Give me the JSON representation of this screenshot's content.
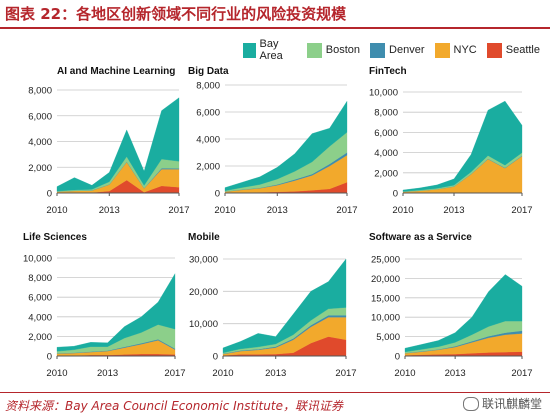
{
  "header": {
    "title": "图表 22：各地区创新领域不同行业的风险投资规模"
  },
  "footer": {
    "source": "资料来源：Bay Area Council Economic Institute，联讯证券",
    "watermark": "联讯麒麟堂"
  },
  "legend": {
    "items": [
      {
        "name": "Bay Area",
        "color": "#1aada0"
      },
      {
        "name": "Boston",
        "color": "#8ccf8a"
      },
      {
        "name": "Denver",
        "color": "#3f8dae"
      },
      {
        "name": "NYC",
        "color": "#f2a92c"
      },
      {
        "name": "Seattle",
        "color": "#e04a2c"
      }
    ]
  },
  "chart_data": [
    {
      "type": "area",
      "stacked": true,
      "title": "AI and Machine Learning",
      "x": [
        2010,
        2011,
        2012,
        2013,
        2014,
        2015,
        2016,
        2017
      ],
      "xticks": [
        "2010",
        "2013",
        "2017"
      ],
      "yticks": [
        "0",
        "2,000",
        "4,000",
        "6,000",
        "8,000"
      ],
      "ylim": [
        0,
        8000
      ],
      "series": [
        {
          "name": "Seattle",
          "values": [
            20,
            30,
            40,
            150,
            1000,
            60,
            550,
            450
          ]
        },
        {
          "name": "NYC",
          "values": [
            80,
            130,
            150,
            500,
            1400,
            300,
            1300,
            1400
          ]
        },
        {
          "name": "Denver",
          "values": [
            5,
            10,
            10,
            20,
            30,
            20,
            80,
            60
          ]
        },
        {
          "name": "Boston",
          "values": [
            40,
            60,
            80,
            200,
            400,
            200,
            700,
            550
          ]
        },
        {
          "name": "Bay Area",
          "values": [
            355,
            970,
            320,
            730,
            2070,
            1120,
            3770,
            4940
          ]
        }
      ]
    },
    {
      "type": "area",
      "stacked": true,
      "title": "Big Data",
      "x": [
        2010,
        2011,
        2012,
        2013,
        2014,
        2015,
        2016,
        2017
      ],
      "xticks": [
        "2010",
        "2013",
        "2017"
      ],
      "yticks": [
        "0",
        "2,000",
        "4,000",
        "6,000",
        "8,000"
      ],
      "ylim": [
        0,
        8000
      ],
      "series": [
        {
          "name": "Seattle",
          "values": [
            20,
            40,
            50,
            80,
            120,
            200,
            300,
            800
          ]
        },
        {
          "name": "NYC",
          "values": [
            80,
            200,
            300,
            500,
            800,
            1100,
            1700,
            2000
          ]
        },
        {
          "name": "Denver",
          "values": [
            10,
            20,
            30,
            50,
            80,
            100,
            150,
            200
          ]
        },
        {
          "name": "Boston",
          "values": [
            50,
            150,
            250,
            400,
            600,
            900,
            1300,
            1500
          ]
        },
        {
          "name": "Bay Area",
          "values": [
            240,
            390,
            570,
            870,
            1300,
            2100,
            1350,
            2300
          ]
        }
      ]
    },
    {
      "type": "area",
      "stacked": true,
      "title": "FinTech",
      "x": [
        2010,
        2011,
        2012,
        2013,
        2014,
        2015,
        2016,
        2017
      ],
      "xticks": [
        "2010",
        "2013",
        "2017"
      ],
      "yticks": [
        "0",
        "2,000",
        "4,000",
        "6,000",
        "8,000",
        "10,000"
      ],
      "ylim": [
        0,
        10000
      ],
      "series": [
        {
          "name": "Seattle",
          "values": [
            10,
            20,
            20,
            30,
            50,
            60,
            60,
            50
          ]
        },
        {
          "name": "NYC",
          "values": [
            100,
            200,
            350,
            600,
            1800,
            3300,
            2400,
            3600
          ]
        },
        {
          "name": "Denver",
          "values": [
            5,
            10,
            10,
            20,
            30,
            40,
            40,
            40
          ]
        },
        {
          "name": "Boston",
          "values": [
            40,
            60,
            80,
            120,
            200,
            300,
            250,
            300
          ]
        },
        {
          "name": "Bay Area",
          "values": [
            145,
            210,
            340,
            630,
            1720,
            4500,
            6350,
            2710
          ]
        }
      ]
    },
    {
      "type": "area",
      "stacked": true,
      "title": "Life Sciences",
      "x": [
        2010,
        2011,
        2012,
        2013,
        2014,
        2015,
        2016,
        2017
      ],
      "xticks": [
        "2010",
        "2013",
        "2017"
      ],
      "yticks": [
        "0",
        "2,000",
        "4,000",
        "6,000",
        "8,000",
        "10,000"
      ],
      "ylim": [
        0,
        10000
      ],
      "series": [
        {
          "name": "Seattle",
          "values": [
            50,
            50,
            100,
            100,
            150,
            200,
            200,
            150
          ]
        },
        {
          "name": "NYC",
          "values": [
            200,
            250,
            300,
            400,
            700,
            1000,
            1400,
            500
          ]
        },
        {
          "name": "Denver",
          "values": [
            30,
            30,
            50,
            50,
            80,
            100,
            100,
            100
          ]
        },
        {
          "name": "Boston",
          "values": [
            200,
            300,
            500,
            400,
            900,
            1100,
            1500,
            2000
          ]
        },
        {
          "name": "Bay Area",
          "values": [
            420,
            370,
            450,
            400,
            1170,
            1600,
            2300,
            5650
          ]
        }
      ]
    },
    {
      "type": "area",
      "stacked": true,
      "title": "Mobile",
      "x": [
        2010,
        2011,
        2012,
        2013,
        2014,
        2015,
        2016,
        2017
      ],
      "xticks": [
        "2010",
        "2013",
        "2017"
      ],
      "yticks": [
        "0",
        "10,000",
        "20,000",
        "30,000"
      ],
      "ylim": [
        0,
        30000
      ],
      "series": [
        {
          "name": "Seattle",
          "values": [
            200,
            500,
            500,
            600,
            1000,
            4000,
            6000,
            5000
          ]
        },
        {
          "name": "NYC",
          "values": [
            400,
            1000,
            1400,
            2000,
            4000,
            5000,
            6000,
            7000
          ]
        },
        {
          "name": "Denver",
          "values": [
            100,
            200,
            200,
            300,
            400,
            500,
            600,
            600
          ]
        },
        {
          "name": "Boston",
          "values": [
            300,
            500,
            700,
            800,
            1200,
            1500,
            2000,
            2400
          ]
        },
        {
          "name": "Bay Area",
          "values": [
            1500,
            2300,
            4200,
            2300,
            6400,
            9000,
            8400,
            15000
          ]
        }
      ]
    },
    {
      "type": "area",
      "stacked": true,
      "title": "Software as a Service",
      "x": [
        2010,
        2011,
        2012,
        2013,
        2014,
        2015,
        2016,
        2017
      ],
      "xticks": [
        "2010",
        "2013",
        "2017"
      ],
      "yticks": [
        "0",
        "5,000",
        "10,000",
        "15,000",
        "20,000",
        "25,000"
      ],
      "ylim": [
        0,
        25000
      ],
      "series": [
        {
          "name": "Seattle",
          "values": [
            200,
            300,
            400,
            500,
            700,
            900,
            1000,
            1100
          ]
        },
        {
          "name": "NYC",
          "values": [
            500,
            800,
            1200,
            1800,
            2800,
            3800,
            4500,
            4700
          ]
        },
        {
          "name": "Denver",
          "values": [
            50,
            100,
            100,
            200,
            300,
            400,
            500,
            700
          ]
        },
        {
          "name": "Boston",
          "values": [
            300,
            500,
            700,
            1000,
            1700,
            2500,
            3000,
            2500
          ]
        },
        {
          "name": "Bay Area",
          "values": [
            950,
            1300,
            1600,
            2500,
            4500,
            9000,
            12000,
            9000
          ]
        }
      ]
    }
  ]
}
